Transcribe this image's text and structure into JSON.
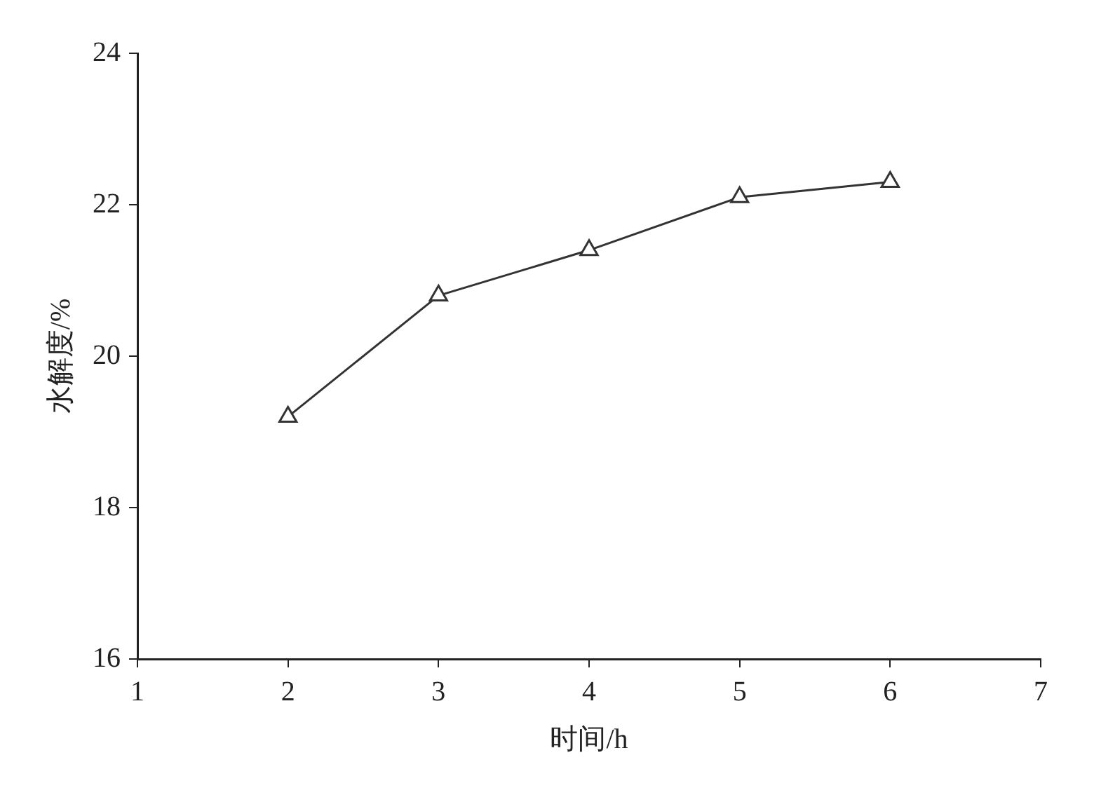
{
  "chart_data": {
    "type": "line",
    "xlabel": "时间/h",
    "ylabel": "水解度/%",
    "x": [
      2,
      3,
      4,
      5,
      6
    ],
    "series": [
      {
        "color": "#333333",
        "values": [
          19.2,
          20.8,
          21.4,
          22.1,
          22.3
        ]
      }
    ],
    "xlim": [
      1,
      7
    ],
    "xticks": [
      1,
      2,
      3,
      4,
      5,
      6,
      7
    ],
    "ylim": [
      16,
      24
    ],
    "yticks": [
      16,
      18,
      20,
      22,
      24
    ],
    "marker": "triangle",
    "line_style": "solid",
    "legend": false,
    "grid": false
  }
}
